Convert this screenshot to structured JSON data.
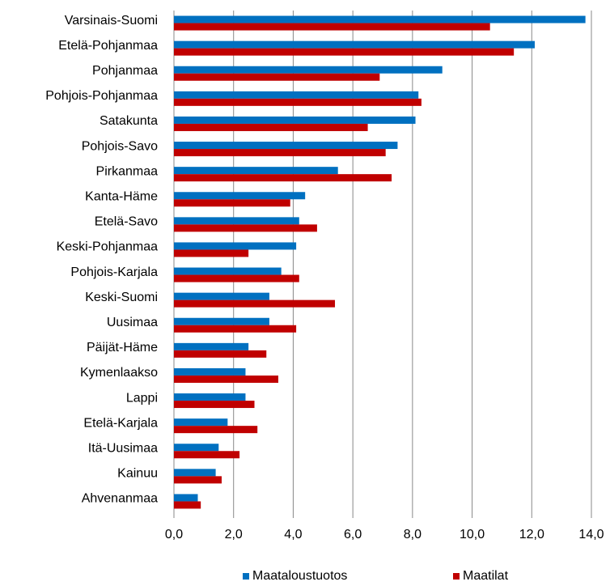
{
  "chart_data": {
    "type": "bar",
    "orientation": "horizontal",
    "categories": [
      "Varsinais-Suomi",
      "Etelä-Pohjanmaa",
      "Pohjanmaa",
      "Pohjois-Pohjanmaa",
      "Satakunta",
      "Pohjois-Savo",
      "Pirkanmaa",
      "Kanta-Häme",
      "Etelä-Savo",
      "Keski-Pohjanmaa",
      "Pohjois-Karjala",
      "Keski-Suomi",
      "Uusimaa",
      "Päijät-Häme",
      "Kymenlaakso",
      "Lappi",
      "Etelä-Karjala",
      "Itä-Uusimaa",
      "Kainuu",
      "Ahvenanmaa"
    ],
    "series": [
      {
        "name": "Maataloustuotos",
        "color": "#0070c0",
        "values": [
          13.8,
          12.1,
          9.0,
          8.2,
          8.1,
          7.5,
          5.5,
          4.4,
          4.2,
          4.1,
          3.6,
          3.2,
          3.2,
          2.5,
          2.4,
          2.4,
          1.8,
          1.5,
          1.4,
          0.8
        ]
      },
      {
        "name": "Maatilat",
        "color": "#c00000",
        "values": [
          10.6,
          11.4,
          6.9,
          8.3,
          6.5,
          7.1,
          7.3,
          3.9,
          4.8,
          2.5,
          4.2,
          5.4,
          4.1,
          3.1,
          3.5,
          2.7,
          2.8,
          2.2,
          1.6,
          0.9
        ]
      }
    ],
    "xlim": [
      0,
      14
    ],
    "xticks": [
      {
        "value": 0,
        "label": "0,0"
      },
      {
        "value": 2,
        "label": "2,0"
      },
      {
        "value": 4,
        "label": "4,0"
      },
      {
        "value": 6,
        "label": "6,0"
      },
      {
        "value": 8,
        "label": "8,0"
      },
      {
        "value": 10,
        "label": "10,0"
      },
      {
        "value": 12,
        "label": "12,0"
      },
      {
        "value": 14,
        "label": "14,0"
      }
    ],
    "grid": true,
    "legend": "bottom"
  }
}
